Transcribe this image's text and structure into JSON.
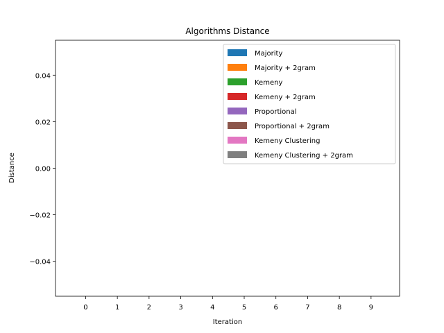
{
  "chart_data": {
    "type": "bar",
    "title": "Algorithms Distance",
    "xlabel": "Iteration",
    "ylabel": "Distance",
    "categories": [
      "0",
      "1",
      "2",
      "3",
      "4",
      "5",
      "6",
      "7",
      "8",
      "9"
    ],
    "ylim": [
      -0.055,
      0.055
    ],
    "yticks": [
      -0.04,
      -0.02,
      0.0,
      0.02,
      0.04
    ],
    "ytick_labels": [
      "−0.04",
      "−0.02",
      "0.00",
      "0.02",
      "0.04"
    ],
    "grid": false,
    "legend_position": "top-right",
    "series": [
      {
        "name": "Majority",
        "color": "#1f77b4",
        "values": [
          0,
          0,
          0,
          0,
          0,
          0,
          0,
          0,
          0,
          0
        ]
      },
      {
        "name": "Majority + 2gram",
        "color": "#ff7f0e",
        "values": [
          0,
          0,
          0,
          0,
          0,
          0,
          0,
          0,
          0,
          0
        ]
      },
      {
        "name": "Kemeny",
        "color": "#2ca02c",
        "values": [
          0,
          0,
          0,
          0,
          0,
          0,
          0,
          0,
          0,
          0
        ]
      },
      {
        "name": "Kemeny + 2gram",
        "color": "#d62728",
        "values": [
          0,
          0,
          0,
          0,
          0,
          0,
          0,
          0,
          0,
          0
        ]
      },
      {
        "name": "Proportional",
        "color": "#9467bd",
        "values": [
          0,
          0,
          0,
          0,
          0,
          0,
          0,
          0,
          0,
          0
        ]
      },
      {
        "name": "Proportional + 2gram",
        "color": "#8c564b",
        "values": [
          0,
          0,
          0,
          0,
          0,
          0,
          0,
          0,
          0,
          0
        ]
      },
      {
        "name": "Kemeny Clustering",
        "color": "#e377c2",
        "values": [
          0,
          0,
          0,
          0,
          0,
          0,
          0,
          0,
          0,
          0
        ]
      },
      {
        "name": "Kemeny Clustering + 2gram",
        "color": "#7f7f7f",
        "values": [
          0,
          0,
          0,
          0,
          0,
          0,
          0,
          0,
          0,
          0
        ]
      }
    ]
  }
}
